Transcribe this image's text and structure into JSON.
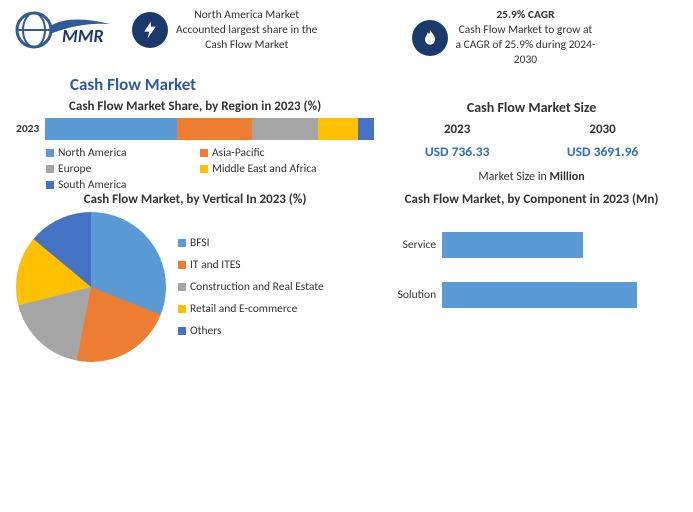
{
  "colors": {
    "blue": "#5b9bd5",
    "orange": "#ed7d31",
    "gray": "#a5a5a5",
    "yellow": "#ffc000",
    "darkblue": "#4472c4",
    "icon_bg": "#1b3a6b",
    "title_blue": "#2e5c9a",
    "value_blue": "#2f6fb7"
  },
  "header": {
    "item1": {
      "line1": "North America Market",
      "line2": "Accounted largest share in the",
      "line3": "Cash Flow Market"
    },
    "item2": {
      "bold": "25.9% CAGR",
      "line1": "Cash Flow Market to grow at",
      "line2": "a CAGR of 25.9% during 2024-",
      "line3": "2030"
    }
  },
  "main_title": "Cash Flow Market",
  "region_chart": {
    "title": "Cash Flow Market Share, by Region in 2023 (%)",
    "year_label": "2023",
    "categories": [
      "North America",
      "Asia-Pacific",
      "Europe",
      "Middle East and Africa",
      "South America"
    ],
    "values": [
      40,
      23,
      20,
      12,
      5
    ],
    "seg_colors": [
      "#5b9bd5",
      "#ed7d31",
      "#a5a5a5",
      "#ffc000",
      "#4472c4"
    ]
  },
  "market_size": {
    "title": "Cash Flow Market Size",
    "years": [
      "2023",
      "2030"
    ],
    "values": [
      "USD 736.33",
      "USD 3691.96"
    ],
    "value_color": "#2f6fb7",
    "note_prefix": "Market Size in ",
    "note_bold": "Million"
  },
  "pie_chart": {
    "title": "Cash Flow Market, by Vertical In 2023 (%)",
    "categories": [
      "BFSI",
      "IT and ITES",
      "Construction and Real Estate",
      "Retail and E-commerce",
      "Others"
    ],
    "values": [
      38,
      22,
      18,
      15,
      7
    ],
    "colors": [
      "#5b9bd5",
      "#ed7d31",
      "#a5a5a5",
      "#ffc000",
      "#4472c4"
    ],
    "start_angle_deg": -25
  },
  "component_chart": {
    "title": "Cash Flow Market, by Component in 2023 (Mn)",
    "categories": [
      "Service",
      "Solution"
    ],
    "values": [
      310,
      430
    ],
    "xmax": 500,
    "bar_color": "#5b9bd5"
  }
}
